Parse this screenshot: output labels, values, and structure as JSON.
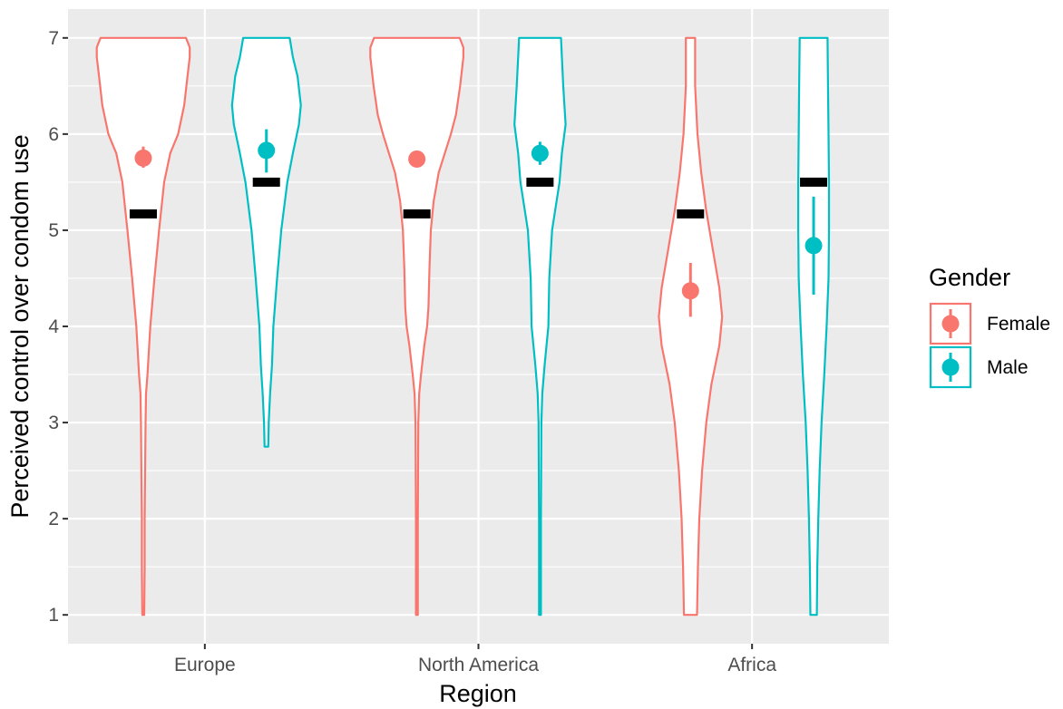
{
  "chart_data": {
    "type": "violin",
    "xlabel": "Region",
    "ylabel": "Perceived control over condom use",
    "categories": [
      "Europe",
      "North America",
      "Africa"
    ],
    "ylim": [
      0.7,
      7.3
    ],
    "yticks": [
      1,
      2,
      3,
      4,
      5,
      6,
      7
    ],
    "grid": true,
    "legend": {
      "title": "Gender",
      "placement": "right",
      "entries": [
        {
          "name": "Female",
          "color": "#F8766D"
        },
        {
          "name": "Male",
          "color": "#00BFC4"
        }
      ]
    },
    "series": [
      {
        "name": "Female",
        "color": "#F8766D",
        "groups": [
          {
            "category": "Europe",
            "min": 1,
            "max": 7,
            "profile": [
              [
                1.0,
                0.02
              ],
              [
                1.5,
                0.03
              ],
              [
                2.0,
                0.03
              ],
              [
                2.5,
                0.04
              ],
              [
                3.0,
                0.05
              ],
              [
                3.3,
                0.06
              ],
              [
                3.5,
                0.09
              ],
              [
                4.0,
                0.15
              ],
              [
                4.5,
                0.24
              ],
              [
                5.0,
                0.34
              ],
              [
                5.5,
                0.45
              ],
              [
                5.8,
                0.58
              ],
              [
                6.0,
                0.75
              ],
              [
                6.3,
                0.88
              ],
              [
                6.6,
                0.95
              ],
              [
                6.8,
                1.0
              ],
              [
                6.9,
                1.0
              ],
              [
                7.0,
                0.92
              ]
            ],
            "mean": 5.75,
            "ci": [
              5.65,
              5.87
            ],
            "reference": 5.17
          },
          {
            "category": "North America",
            "min": 1,
            "max": 7,
            "profile": [
              [
                1.0,
                0.02
              ],
              [
                2.0,
                0.02
              ],
              [
                3.0,
                0.03
              ],
              [
                3.3,
                0.05
              ],
              [
                3.5,
                0.09
              ],
              [
                3.8,
                0.16
              ],
              [
                4.0,
                0.22
              ],
              [
                4.2,
                0.25
              ],
              [
                4.6,
                0.27
              ],
              [
                5.0,
                0.3
              ],
              [
                5.3,
                0.36
              ],
              [
                5.6,
                0.47
              ],
              [
                6.0,
                0.73
              ],
              [
                6.2,
                0.84
              ],
              [
                6.5,
                0.93
              ],
              [
                6.8,
                1.0
              ],
              [
                6.9,
                1.0
              ],
              [
                7.0,
                0.92
              ]
            ],
            "mean": 5.74,
            "ci": [
              5.68,
              5.8
            ],
            "reference": 5.17
          },
          {
            "category": "Africa",
            "min": 1,
            "max": 7,
            "profile": [
              [
                1.0,
                0.14
              ],
              [
                1.5,
                0.16
              ],
              [
                2.0,
                0.19
              ],
              [
                2.5,
                0.25
              ],
              [
                3.0,
                0.34
              ],
              [
                3.4,
                0.45
              ],
              [
                3.8,
                0.62
              ],
              [
                4.1,
                0.68
              ],
              [
                4.4,
                0.62
              ],
              [
                4.8,
                0.48
              ],
              [
                5.2,
                0.34
              ],
              [
                5.6,
                0.23
              ],
              [
                6.0,
                0.15
              ],
              [
                6.5,
                0.1
              ],
              [
                7.0,
                0.1
              ]
            ],
            "mean": 4.37,
            "ci": [
              4.1,
              4.66
            ],
            "reference": 5.17
          }
        ]
      },
      {
        "name": "Male",
        "color": "#00BFC4",
        "groups": [
          {
            "category": "Europe",
            "min": 2.75,
            "max": 7,
            "profile": [
              [
                2.75,
                0.04
              ],
              [
                3.0,
                0.05
              ],
              [
                3.3,
                0.08
              ],
              [
                3.6,
                0.12
              ],
              [
                4.0,
                0.15
              ],
              [
                4.5,
                0.23
              ],
              [
                5.0,
                0.32
              ],
              [
                5.5,
                0.45
              ],
              [
                5.8,
                0.57
              ],
              [
                6.1,
                0.7
              ],
              [
                6.3,
                0.74
              ],
              [
                6.6,
                0.67
              ],
              [
                6.8,
                0.57
              ],
              [
                7.0,
                0.5
              ]
            ],
            "mean": 5.83,
            "ci": [
              5.6,
              6.05
            ],
            "reference": 5.5
          },
          {
            "category": "North America",
            "min": 1,
            "max": 7,
            "profile": [
              [
                1.0,
                0.02
              ],
              [
                2.0,
                0.02
              ],
              [
                3.0,
                0.03
              ],
              [
                3.3,
                0.05
              ],
              [
                3.6,
                0.1
              ],
              [
                4.0,
                0.18
              ],
              [
                4.5,
                0.2
              ],
              [
                5.0,
                0.26
              ],
              [
                5.5,
                0.42
              ],
              [
                5.8,
                0.47
              ],
              [
                6.1,
                0.55
              ],
              [
                6.5,
                0.5
              ],
              [
                6.8,
                0.47
              ],
              [
                7.0,
                0.45
              ]
            ],
            "mean": 5.8,
            "ci": [
              5.68,
              5.92
            ],
            "reference": 5.5
          },
          {
            "category": "Africa",
            "min": 1,
            "max": 7,
            "profile": [
              [
                1.0,
                0.07
              ],
              [
                1.5,
                0.08
              ],
              [
                2.0,
                0.1
              ],
              [
                2.5,
                0.13
              ],
              [
                3.0,
                0.17
              ],
              [
                3.5,
                0.23
              ],
              [
                4.0,
                0.28
              ],
              [
                4.5,
                0.32
              ],
              [
                5.0,
                0.33
              ],
              [
                5.5,
                0.33
              ],
              [
                6.0,
                0.32
              ],
              [
                6.5,
                0.31
              ],
              [
                7.0,
                0.3
              ]
            ],
            "mean": 4.84,
            "ci": [
              4.33,
              5.35
            ],
            "reference": 5.5
          }
        ]
      }
    ]
  }
}
